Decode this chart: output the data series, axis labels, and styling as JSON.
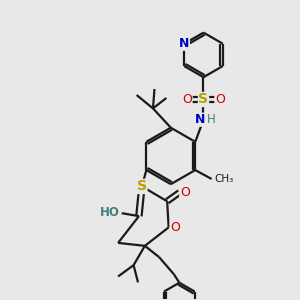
{
  "bg_color": "#e8e8e8",
  "bond_color": "#1a1a1a",
  "bond_lw": 1.6,
  "atom_colors": {
    "N": "#0000cc",
    "S": "#b8a000",
    "O": "#cc0000",
    "H": "#408080",
    "C": "#1a1a1a"
  }
}
